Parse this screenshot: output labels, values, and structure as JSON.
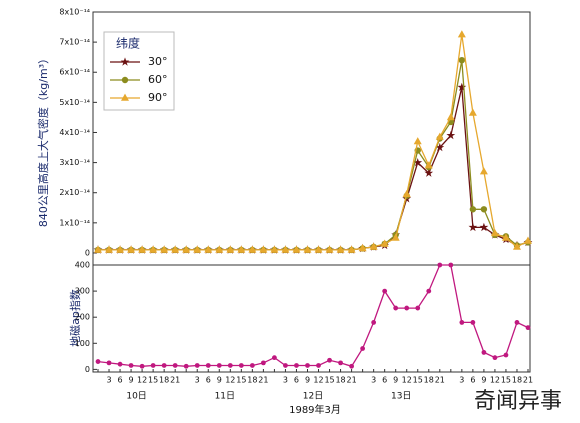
{
  "chart_data": [
    {
      "type": "line",
      "ylabel": "840公里高度上大气密度（kg/m³）",
      "legend_title": "纬度",
      "legend": "upper left",
      "ylim": [
        -4e-15,
        8e-14
      ],
      "yticks": [
        0,
        {
          "value": 1e-14,
          "label": "1x10⁻¹⁴"
        },
        {
          "value": 2e-14,
          "label": "2x10⁻¹⁴"
        },
        {
          "value": 3e-14,
          "label": "3x10⁻¹⁴"
        },
        {
          "value": 4e-14,
          "label": "4x10⁻¹⁴"
        },
        {
          "value": 5e-14,
          "label": "5x10⁻¹⁴"
        },
        {
          "value": 6e-14,
          "label": "6x10⁻¹⁴"
        },
        {
          "value": 7e-14,
          "label": "7x10⁻¹⁴"
        },
        {
          "value": 8e-14,
          "label": "8x10⁻¹⁴"
        }
      ],
      "series": [
        {
          "name": "30°",
          "color": "#6b1212",
          "marker": "star",
          "values": [
            1e-15,
            1e-15,
            1e-15,
            1e-15,
            1e-15,
            1e-15,
            1e-15,
            1e-15,
            1e-15,
            1e-15,
            1e-15,
            1e-15,
            1e-15,
            1e-15,
            1e-15,
            1e-15,
            1e-15,
            1e-15,
            1e-15,
            1e-15,
            1e-15,
            1e-15,
            1e-15,
            1e-15,
            1.5e-15,
            2e-15,
            2.5e-15,
            6e-15,
            1.8e-14,
            3e-14,
            2.65e-14,
            3.5e-14,
            3.9e-14,
            5.5e-14,
            8.5e-15,
            8.5e-15,
            6e-15,
            4.5e-15,
            2.5e-15,
            3.5e-15
          ]
        },
        {
          "name": "60°",
          "color": "#8c8c1e",
          "marker": "circle",
          "values": [
            1e-15,
            1e-15,
            1e-15,
            1e-15,
            1e-15,
            1e-15,
            1e-15,
            1e-15,
            1e-15,
            1e-15,
            1e-15,
            1e-15,
            1e-15,
            1e-15,
            1e-15,
            1e-15,
            1e-15,
            1e-15,
            1e-15,
            1e-15,
            1e-15,
            1e-15,
            1e-15,
            1e-15,
            1.5e-15,
            2e-15,
            3e-15,
            6e-15,
            1.9e-14,
            3.4e-14,
            2.85e-14,
            3.8e-14,
            4.35e-14,
            6.4e-14,
            1.45e-14,
            1.45e-14,
            6e-15,
            5.5e-15,
            2.5e-15,
            3.5e-15
          ]
        },
        {
          "name": "90°",
          "color": "#e6a82e",
          "marker": "triangle",
          "values": [
            1e-15,
            1e-15,
            1e-15,
            1e-15,
            1e-15,
            1e-15,
            1e-15,
            1e-15,
            1e-15,
            1e-15,
            1e-15,
            1e-15,
            1e-15,
            1e-15,
            1e-15,
            1e-15,
            1e-15,
            1e-15,
            1e-15,
            1e-15,
            1e-15,
            1e-15,
            1e-15,
            1e-15,
            1.5e-15,
            2e-15,
            3e-15,
            5e-15,
            1.95e-14,
            3.7e-14,
            2.9e-14,
            3.85e-14,
            4.5e-14,
            7.25e-14,
            4.65e-14,
            2.7e-14,
            6.5e-15,
            5e-15,
            2e-15,
            4e-15
          ]
        }
      ]
    },
    {
      "type": "line",
      "ylabel": "地磁ap指数",
      "ylim": [
        -10,
        400
      ],
      "yticks": [
        0,
        100,
        200,
        300,
        400
      ],
      "categories": [
        null,
        "3",
        "6",
        "9",
        "12",
        "15",
        "18",
        "21",
        null,
        "3",
        "6",
        "9",
        "12",
        "15",
        "18",
        "21",
        null,
        "3",
        "6",
        "9",
        "12",
        "15",
        "18",
        "21",
        null,
        "3",
        "6",
        "9",
        "12",
        "15",
        "18",
        "21",
        null,
        "3",
        "6",
        "9",
        "12",
        "15",
        "18",
        "21"
      ],
      "day_labels": [
        "10日",
        "11日",
        "12日",
        "13日",
        null
      ],
      "xlabel": "1989年3月",
      "series": [
        {
          "color": "#c0187f",
          "marker": "circle",
          "values": [
            30,
            25,
            20,
            15,
            12,
            15,
            15,
            15,
            12,
            15,
            15,
            15,
            15,
            15,
            15,
            25,
            45,
            15,
            15,
            15,
            15,
            35,
            25,
            12,
            80,
            180,
            300,
            235,
            235,
            235,
            300,
            400,
            400,
            180,
            180,
            65,
            45,
            55,
            180,
            160
          ]
        }
      ]
    },
    {
      "watermark": "奇闻异事"
    }
  ]
}
